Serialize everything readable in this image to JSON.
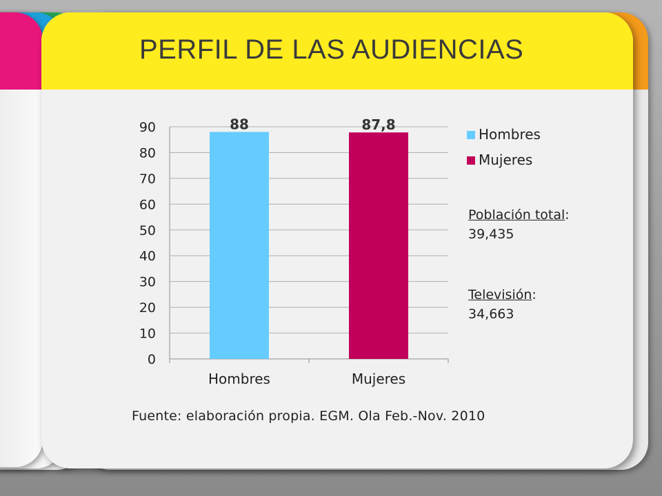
{
  "slide": {
    "title": "PERFIL DE LAS AUDIENCIAS",
    "source_note": "Fuente: elaboración propia. EGM. Ola Feb.-Nov. 2010",
    "notes": [
      {
        "label": "Población total",
        "value": "39,435"
      },
      {
        "label": "Televisión",
        "value": "34,663"
      }
    ]
  },
  "colors": {
    "header_yellow": "#ffec1e",
    "tab_pink": "#e8157a",
    "tab_blue": "#1ea0dc",
    "tab_green": "#27a55a",
    "tab_orange": "#f39a1a"
  },
  "chart_data": {
    "type": "bar",
    "categories": [
      "Hombres",
      "Mujeres"
    ],
    "values": [
      88,
      87.8
    ],
    "data_labels": [
      "88",
      "87,8"
    ],
    "bar_colors": [
      "#66ccff",
      "#c0005a"
    ],
    "legend": [
      {
        "name": "Hombres",
        "color": "#66ccff"
      },
      {
        "name": "Mujeres",
        "color": "#c0005a"
      }
    ],
    "legend_position": "right",
    "ylim": [
      0,
      90
    ],
    "yticks": [
      0,
      10,
      20,
      30,
      40,
      50,
      60,
      70,
      80,
      90
    ],
    "grid": true
  }
}
